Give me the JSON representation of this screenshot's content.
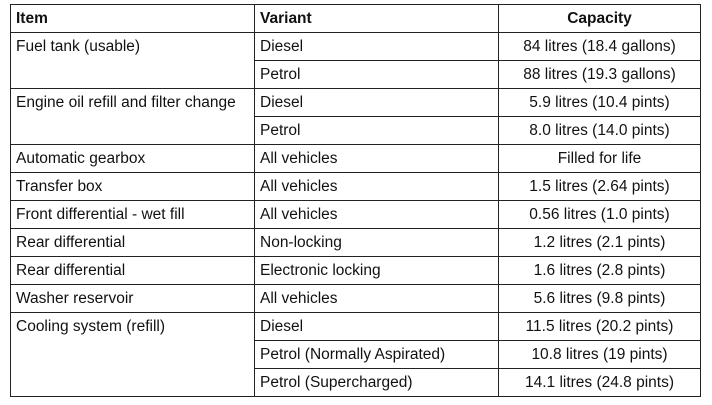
{
  "headers": {
    "item": "Item",
    "variant": "Variant",
    "capacity": "Capacity"
  },
  "rows": [
    {
      "item": "Fuel tank (usable)",
      "variants": [
        {
          "variant": "Diesel",
          "capacity": "84 litres (18.4 gallons)"
        },
        {
          "variant": "Petrol",
          "capacity": "88 litres (19.3 gallons)"
        }
      ]
    },
    {
      "item": "Engine oil refill and filter change",
      "variants": [
        {
          "variant": "Diesel",
          "capacity": "5.9 litres (10.4 pints)"
        },
        {
          "variant": "Petrol",
          "capacity": "8.0 litres (14.0 pints)"
        }
      ]
    },
    {
      "item": "Automatic gearbox",
      "variants": [
        {
          "variant": "All vehicles",
          "capacity": "Filled for life"
        }
      ]
    },
    {
      "item": "Transfer box",
      "variants": [
        {
          "variant": "All vehicles",
          "capacity": "1.5 litres (2.64 pints)"
        }
      ]
    },
    {
      "item": "Front differential - wet fill",
      "variants": [
        {
          "variant": "All vehicles",
          "capacity": "0.56 litres (1.0 pints)"
        }
      ]
    },
    {
      "item": "Rear differential",
      "variants": [
        {
          "variant": "Non-locking",
          "capacity": "1.2 litres (2.1 pints)"
        }
      ]
    },
    {
      "item": "Rear differential",
      "variants": [
        {
          "variant": "Electronic locking",
          "capacity": "1.6 litres (2.8 pints)"
        }
      ]
    },
    {
      "item": "Washer reservoir",
      "variants": [
        {
          "variant": "All vehicles",
          "capacity": "5.6 litres (9.8 pints)"
        }
      ]
    },
    {
      "item": "Cooling system (refill)",
      "variants": [
        {
          "variant": "Diesel",
          "capacity": "11.5 litres (20.2 pints)"
        },
        {
          "variant": "Petrol (Normally Aspirated)",
          "capacity": "10.8 litres (19 pints)"
        },
        {
          "variant": "Petrol (Supercharged)",
          "capacity": "14.1 litres (24.8 pints)"
        }
      ]
    }
  ]
}
